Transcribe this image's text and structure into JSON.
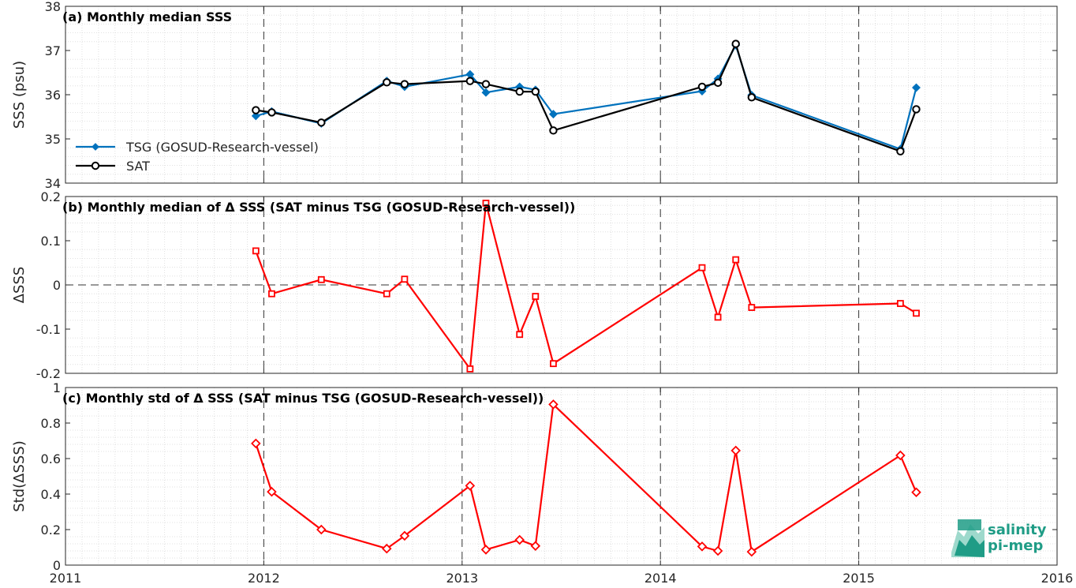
{
  "colors": {
    "tsg": "#0072bd",
    "sat": "#000000",
    "delta": "#ff0000",
    "logo": "#1f9c86"
  },
  "logo": {
    "line1": "salinity",
    "line2": "pi-mep"
  },
  "chart_data": [
    {
      "type": "line",
      "title": "(a) Monthly median SSS",
      "ylabel": "SSS (psu)",
      "xlim": [
        2011,
        2016
      ],
      "ylim": [
        34,
        38
      ],
      "x_ticks": [
        "2011",
        "2012",
        "2013",
        "2014",
        "2015",
        "2016"
      ],
      "y_ticks": [
        "34",
        "35",
        "36",
        "37",
        "38"
      ],
      "grid": true,
      "legend_position": "lower-left",
      "series": [
        {
          "name": "TSG (GOSUD-Research-vessel)",
          "marker": "diamond",
          "x": [
            2011.96,
            2012.04,
            2012.29,
            2012.62,
            2012.71,
            2013.04,
            2013.12,
            2013.29,
            2013.37,
            2013.46,
            2014.21,
            2014.29,
            2014.38,
            2014.46,
            2015.21,
            2015.29
          ],
          "y": [
            35.52,
            35.62,
            35.35,
            36.31,
            36.18,
            36.46,
            36.05,
            36.18,
            36.11,
            35.56,
            36.08,
            36.36,
            37.12,
            35.99,
            34.77,
            36.16
          ]
        },
        {
          "name": "SAT",
          "marker": "circle",
          "x": [
            2011.96,
            2012.04,
            2012.29,
            2012.62,
            2012.71,
            2013.04,
            2013.12,
            2013.29,
            2013.37,
            2013.46,
            2014.21,
            2014.29,
            2014.38,
            2014.46,
            2015.21,
            2015.29
          ],
          "y": [
            35.65,
            35.6,
            35.37,
            36.28,
            36.24,
            36.31,
            36.24,
            36.07,
            36.07,
            35.19,
            36.18,
            36.27,
            37.15,
            35.94,
            34.72,
            35.67
          ]
        }
      ]
    },
    {
      "type": "line",
      "title": "(b) Monthly median of Δ SSS (SAT minus TSG (GOSUD-Research-vessel))",
      "ylabel": "ΔSSS",
      "xlim": [
        2011,
        2016
      ],
      "ylim": [
        -0.2,
        0.2
      ],
      "x_ticks": [
        "2011",
        "2012",
        "2013",
        "2014",
        "2015",
        "2016"
      ],
      "y_ticks": [
        "-0.2",
        "-0.1",
        "0",
        "0.1",
        "0.2"
      ],
      "grid": true,
      "zero_line": true,
      "series": [
        {
          "name": "",
          "marker": "square",
          "x": [
            2011.96,
            2012.04,
            2012.29,
            2012.62,
            2012.71,
            2013.04,
            2013.12,
            2013.29,
            2013.37,
            2013.46,
            2014.21,
            2014.29,
            2014.38,
            2014.46,
            2015.21,
            2015.29
          ],
          "y": [
            0.077,
            -0.02,
            0.012,
            -0.02,
            0.013,
            -0.19,
            0.185,
            -0.112,
            -0.026,
            -0.178,
            0.039,
            -0.073,
            0.057,
            -0.051,
            -0.042,
            -0.064
          ]
        }
      ]
    },
    {
      "type": "line",
      "title": "(c) Monthly std of Δ SSS (SAT minus TSG (GOSUD-Research-vessel))",
      "ylabel": "Std(ΔSSS)",
      "xlim": [
        2011,
        2016
      ],
      "ylim": [
        0,
        1
      ],
      "x_ticks": [
        "2011",
        "2012",
        "2013",
        "2014",
        "2015",
        "2016"
      ],
      "y_ticks": [
        "0",
        "0.2",
        "0.4",
        "0.6",
        "0.8",
        "1"
      ],
      "grid": true,
      "series": [
        {
          "name": "",
          "marker": "diamond",
          "x": [
            2011.96,
            2012.04,
            2012.29,
            2012.62,
            2012.71,
            2013.04,
            2013.12,
            2013.29,
            2013.37,
            2013.46,
            2014.21,
            2014.29,
            2014.38,
            2014.46,
            2015.21,
            2015.29
          ],
          "y": [
            0.685,
            0.413,
            0.2,
            0.093,
            0.165,
            0.447,
            0.087,
            0.142,
            0.108,
            0.905,
            0.105,
            0.08,
            0.645,
            0.075,
            0.618,
            0.41
          ]
        }
      ]
    }
  ]
}
